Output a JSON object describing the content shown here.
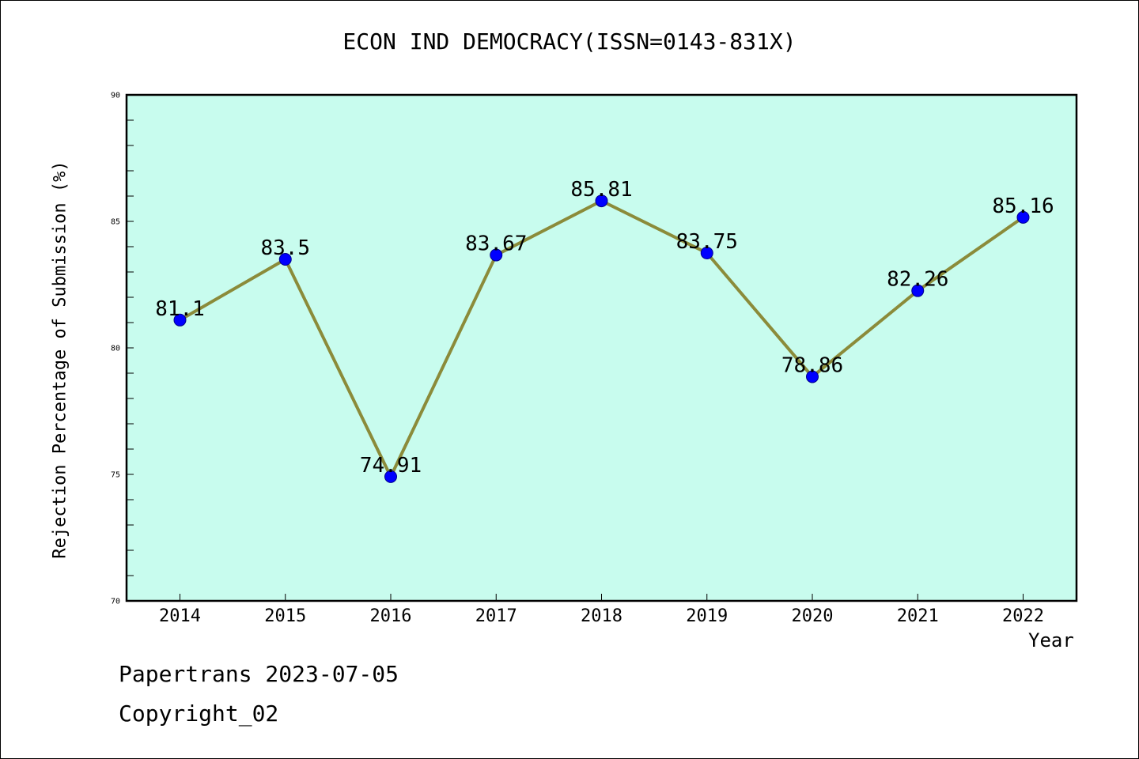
{
  "title": "ECON IND DEMOCRACY(ISSN=0143-831X)",
  "footer": {
    "line1": "Papertrans 2023-07-05",
    "line2": "Copyright_02"
  },
  "chart_data": {
    "type": "line",
    "title": "ECON IND DEMOCRACY(ISSN=0143-831X)",
    "xlabel": "Year",
    "ylabel": "Rejection Percentage of Submission (%)",
    "ylim": [
      70,
      90
    ],
    "yticks": [
      70,
      75,
      80,
      85,
      90
    ],
    "categories": [
      "2014",
      "2015",
      "2016",
      "2017",
      "2018",
      "2019",
      "2020",
      "2021",
      "2022"
    ],
    "series": [
      {
        "values": [
          81.1,
          83.5,
          74.91,
          83.67,
          85.81,
          83.75,
          78.86,
          82.26,
          85.16
        ],
        "labels": [
          "81.1",
          "83.5",
          "74.91",
          "83.67",
          "85.81",
          "83.75",
          "78.86",
          "82.26",
          "85.16"
        ]
      }
    ],
    "grid": false,
    "colors": {
      "plot_background": "#c8fcee",
      "line": "#8b8b3a",
      "marker": "#0000ff"
    }
  }
}
